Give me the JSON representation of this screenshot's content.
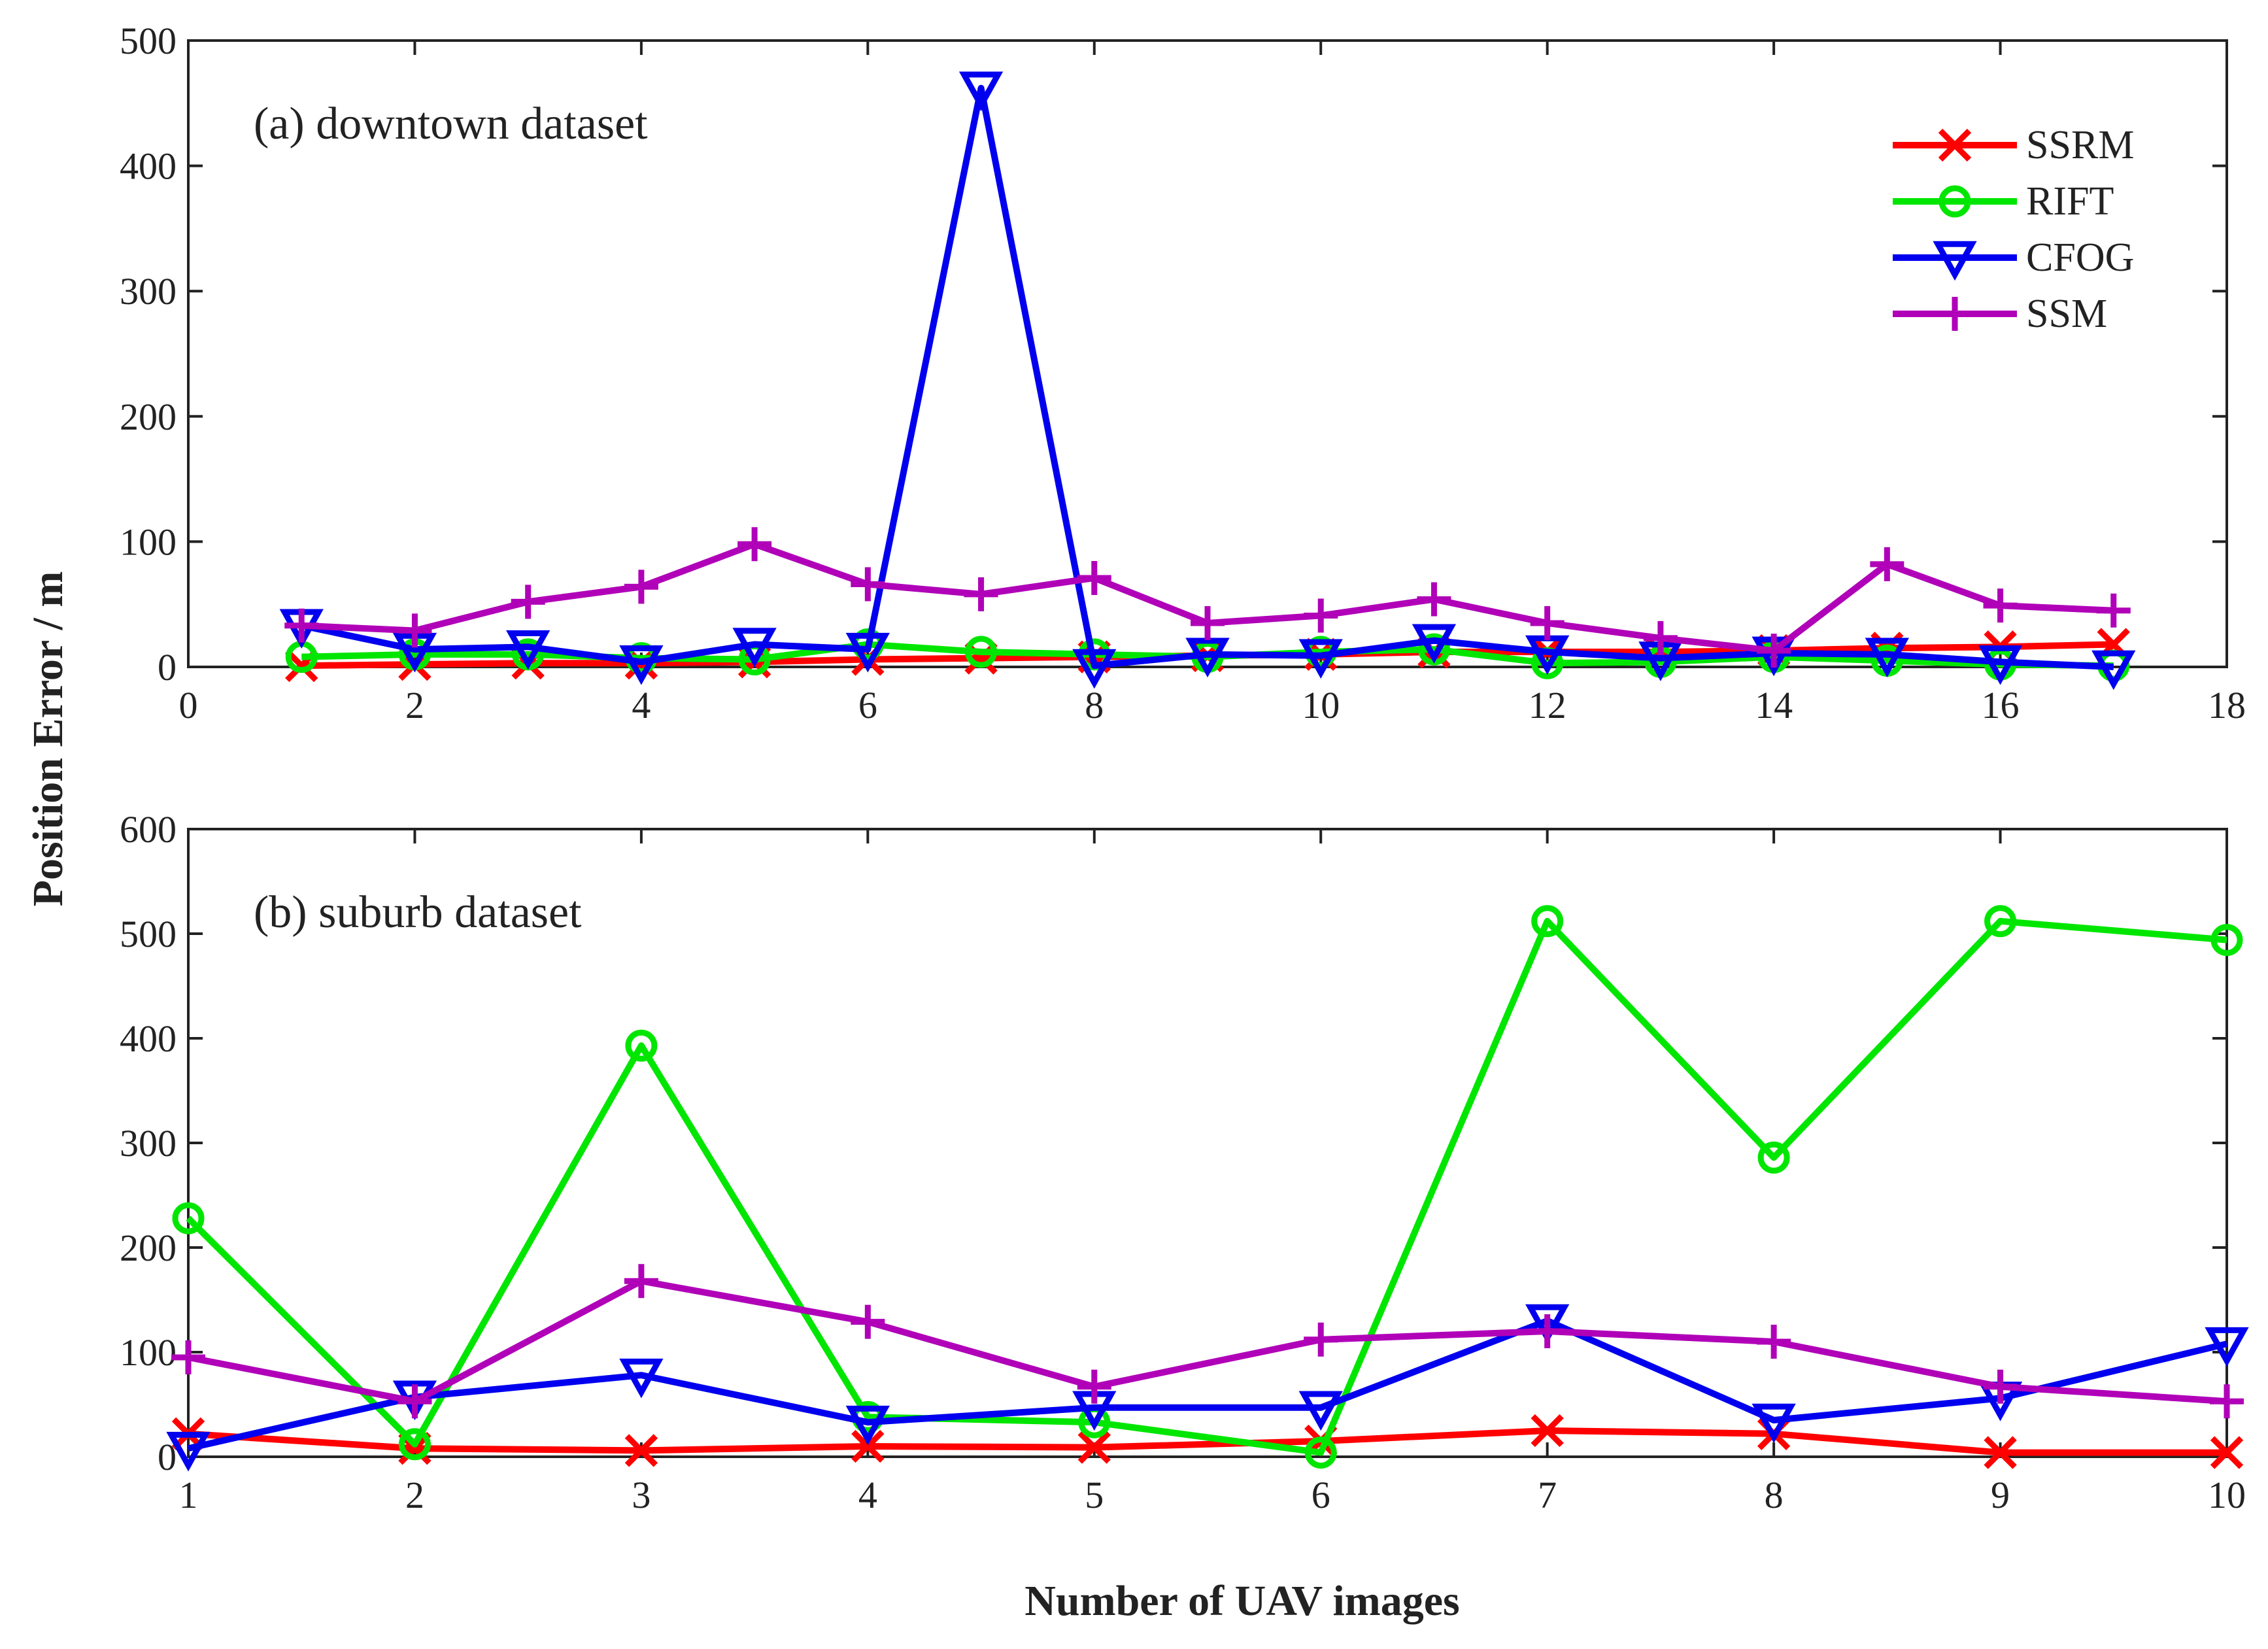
{
  "figure": {
    "ylabel": "Position Error / m",
    "xlabel": "Number of UAV images"
  },
  "legend": {
    "entries": [
      "SSRM",
      "RIFT",
      "CFOG",
      "SSM"
    ]
  },
  "series_style": [
    {
      "name": "SSRM",
      "color": "#ff0000",
      "marker": "x"
    },
    {
      "name": "RIFT",
      "color": "#00e600",
      "marker": "circle"
    },
    {
      "name": "CFOG",
      "color": "#0000ee",
      "marker": "triangle-down"
    },
    {
      "name": "SSM",
      "color": "#b000b8",
      "marker": "plus"
    }
  ],
  "chart_data": [
    {
      "type": "line",
      "title": "(a) downtown dataset",
      "xlim": [
        0,
        18
      ],
      "ylim": [
        0,
        500
      ],
      "xticks": [
        0,
        2,
        4,
        6,
        8,
        10,
        12,
        14,
        16,
        18
      ],
      "yticks": [
        0,
        100,
        200,
        300,
        400,
        500
      ],
      "x": [
        1,
        2,
        3,
        4,
        5,
        6,
        7,
        8,
        9,
        10,
        11,
        12,
        13,
        14,
        15,
        16,
        17
      ],
      "series": [
        {
          "name": "SSRM",
          "values": [
            1,
            2,
            3,
            3,
            4,
            6,
            7,
            8,
            9,
            10,
            12,
            12,
            12,
            13,
            15,
            16,
            18
          ]
        },
        {
          "name": "RIFT",
          "values": [
            8,
            10,
            10,
            7,
            6,
            18,
            12,
            10,
            8,
            12,
            14,
            3,
            4,
            8,
            5,
            2,
            1
          ]
        },
        {
          "name": "CFOG",
          "values": [
            33,
            14,
            16,
            4,
            18,
            14,
            462,
            1,
            10,
            9,
            21,
            12,
            7,
            11,
            10,
            4,
            0
          ]
        },
        {
          "name": "SSM",
          "values": [
            33,
            29,
            52,
            64,
            98,
            66,
            58,
            71,
            35,
            41,
            54,
            35,
            23,
            13,
            82,
            49,
            45
          ]
        }
      ],
      "grid": false,
      "legend_position": "top-right"
    },
    {
      "type": "line",
      "title": "(b) suburb dataset",
      "xlim": [
        1,
        10
      ],
      "ylim": [
        0,
        600
      ],
      "xticks": [
        1,
        2,
        3,
        4,
        5,
        6,
        7,
        8,
        9,
        10
      ],
      "yticks": [
        0,
        100,
        200,
        300,
        400,
        500,
        600
      ],
      "x": [
        1,
        2,
        3,
        4,
        5,
        6,
        7,
        8,
        9,
        10
      ],
      "series": [
        {
          "name": "SSRM",
          "values": [
            22,
            8,
            6,
            10,
            9,
            15,
            25,
            22,
            4,
            4
          ]
        },
        {
          "name": "RIFT",
          "values": [
            228,
            12,
            393,
            38,
            33,
            4,
            512,
            286,
            512,
            494
          ]
        },
        {
          "name": "CFOG",
          "values": [
            8,
            57,
            78,
            33,
            47,
            47,
            130,
            35,
            56,
            108
          ]
        },
        {
          "name": "SSM",
          "values": [
            95,
            53,
            168,
            129,
            67,
            112,
            120,
            110,
            67,
            53
          ]
        }
      ],
      "grid": false
    }
  ]
}
